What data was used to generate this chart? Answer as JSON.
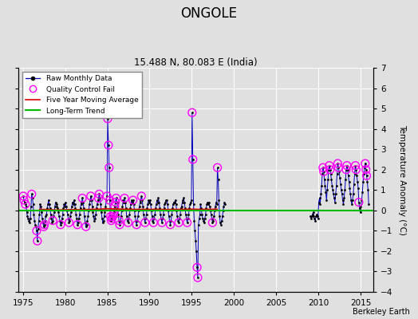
{
  "title": "ONGOLE",
  "subtitle": "15.488 N, 80.083 E (India)",
  "ylabel": "Temperature Anomaly (°C)",
  "xlim": [
    1974.5,
    2016.5
  ],
  "ylim": [
    -4,
    7
  ],
  "yticks": [
    -4,
    -3,
    -2,
    -1,
    0,
    1,
    2,
    3,
    4,
    5,
    6,
    7
  ],
  "xticks": [
    1975,
    1980,
    1985,
    1990,
    1995,
    2000,
    2005,
    2010,
    2015
  ],
  "background_color": "#e0e0e0",
  "grid_color": "#ffffff",
  "watermark": "Berkeley Earth",
  "raw_line_color": "#0000bb",
  "raw_dot_color": "#000000",
  "qc_fail_color": "#ff00ff",
  "moving_avg_color": "#dd0000",
  "trend_color": "#00bb00",
  "trend_y": 0.0,
  "raw_monthly_data": [
    [
      1975.04,
      0.7
    ],
    [
      1975.13,
      0.5
    ],
    [
      1975.21,
      0.4
    ],
    [
      1975.29,
      0.3
    ],
    [
      1975.38,
      0.2
    ],
    [
      1975.46,
      -0.1
    ],
    [
      1975.54,
      -0.3
    ],
    [
      1975.63,
      -0.4
    ],
    [
      1975.71,
      -0.5
    ],
    [
      1975.79,
      -0.6
    ],
    [
      1975.88,
      -0.4
    ],
    [
      1975.96,
      0.2
    ],
    [
      1976.04,
      0.8
    ],
    [
      1976.13,
      0.6
    ],
    [
      1976.21,
      0.3
    ],
    [
      1976.29,
      -0.2
    ],
    [
      1976.38,
      -0.5
    ],
    [
      1976.46,
      -0.7
    ],
    [
      1976.54,
      -0.8
    ],
    [
      1976.63,
      -1.0
    ],
    [
      1976.71,
      -1.5
    ],
    [
      1976.79,
      -0.9
    ],
    [
      1976.88,
      -0.5
    ],
    [
      1976.96,
      -0.2
    ],
    [
      1977.04,
      0.3
    ],
    [
      1977.13,
      0.2
    ],
    [
      1977.21,
      -0.1
    ],
    [
      1977.29,
      -0.4
    ],
    [
      1977.38,
      -0.6
    ],
    [
      1977.46,
      -0.8
    ],
    [
      1977.54,
      -0.7
    ],
    [
      1977.63,
      -0.5
    ],
    [
      1977.71,
      -0.3
    ],
    [
      1977.79,
      -0.2
    ],
    [
      1977.88,
      0.1
    ],
    [
      1977.96,
      0.3
    ],
    [
      1978.04,
      0.5
    ],
    [
      1978.13,
      0.3
    ],
    [
      1978.21,
      0.1
    ],
    [
      1978.29,
      -0.2
    ],
    [
      1978.38,
      -0.4
    ],
    [
      1978.46,
      -0.6
    ],
    [
      1978.54,
      -0.5
    ],
    [
      1978.63,
      -0.3
    ],
    [
      1978.71,
      -0.1
    ],
    [
      1978.79,
      0.2
    ],
    [
      1978.88,
      0.4
    ],
    [
      1978.96,
      0.3
    ],
    [
      1979.04,
      0.2
    ],
    [
      1979.13,
      0.1
    ],
    [
      1979.21,
      -0.1
    ],
    [
      1979.29,
      -0.3
    ],
    [
      1979.38,
      -0.5
    ],
    [
      1979.46,
      -0.7
    ],
    [
      1979.54,
      -0.6
    ],
    [
      1979.63,
      -0.4
    ],
    [
      1979.71,
      -0.2
    ],
    [
      1979.79,
      0.1
    ],
    [
      1979.88,
      0.3
    ],
    [
      1979.96,
      0.2
    ],
    [
      1980.04,
      0.4
    ],
    [
      1980.13,
      0.2
    ],
    [
      1980.21,
      0.0
    ],
    [
      1980.29,
      -0.2
    ],
    [
      1980.38,
      -0.4
    ],
    [
      1980.46,
      -0.6
    ],
    [
      1980.54,
      -0.5
    ],
    [
      1980.63,
      -0.3
    ],
    [
      1980.71,
      -0.1
    ],
    [
      1980.79,
      0.2
    ],
    [
      1980.88,
      0.4
    ],
    [
      1980.96,
      0.3
    ],
    [
      1981.04,
      0.5
    ],
    [
      1981.13,
      0.3
    ],
    [
      1981.21,
      0.1
    ],
    [
      1981.29,
      -0.2
    ],
    [
      1981.38,
      -0.4
    ],
    [
      1981.46,
      -0.7
    ],
    [
      1981.54,
      -0.6
    ],
    [
      1981.63,
      -0.4
    ],
    [
      1981.71,
      -0.2
    ],
    [
      1981.79,
      0.1
    ],
    [
      1981.88,
      0.3
    ],
    [
      1981.96,
      0.4
    ],
    [
      1982.04,
      0.6
    ],
    [
      1982.13,
      0.4
    ],
    [
      1982.21,
      0.1
    ],
    [
      1982.29,
      -0.3
    ],
    [
      1982.38,
      -0.6
    ],
    [
      1982.46,
      -0.8
    ],
    [
      1982.54,
      -0.7
    ],
    [
      1982.63,
      -0.5
    ],
    [
      1982.71,
      -0.3
    ],
    [
      1982.79,
      0.0
    ],
    [
      1982.88,
      0.3
    ],
    [
      1982.96,
      0.5
    ],
    [
      1983.04,
      0.7
    ],
    [
      1983.13,
      0.5
    ],
    [
      1983.21,
      0.2
    ],
    [
      1983.29,
      -0.1
    ],
    [
      1983.38,
      -0.3
    ],
    [
      1983.46,
      -0.5
    ],
    [
      1983.54,
      -0.4
    ],
    [
      1983.63,
      -0.2
    ],
    [
      1983.71,
      0.1
    ],
    [
      1983.79,
      0.3
    ],
    [
      1983.88,
      0.5
    ],
    [
      1983.96,
      0.6
    ],
    [
      1984.04,
      0.8
    ],
    [
      1984.13,
      0.6
    ],
    [
      1984.21,
      0.3
    ],
    [
      1984.29,
      -0.1
    ],
    [
      1984.38,
      -0.4
    ],
    [
      1984.46,
      -0.6
    ],
    [
      1984.54,
      -0.5
    ],
    [
      1984.63,
      -0.3
    ],
    [
      1984.71,
      -0.1
    ],
    [
      1984.79,
      0.2
    ],
    [
      1984.88,
      0.5
    ],
    [
      1984.96,
      0.7
    ],
    [
      1985.04,
      4.5
    ],
    [
      1985.13,
      3.2
    ],
    [
      1985.21,
      2.1
    ],
    [
      1985.29,
      0.5
    ],
    [
      1985.38,
      -0.3
    ],
    [
      1985.46,
      -0.5
    ],
    [
      1985.54,
      -0.4
    ],
    [
      1985.63,
      -0.3
    ],
    [
      1985.71,
      -0.2
    ],
    [
      1985.79,
      -0.1
    ],
    [
      1985.88,
      0.2
    ],
    [
      1985.96,
      0.4
    ],
    [
      1986.04,
      0.6
    ],
    [
      1986.13,
      0.4
    ],
    [
      1986.21,
      0.1
    ],
    [
      1986.29,
      -0.2
    ],
    [
      1986.38,
      -0.5
    ],
    [
      1986.46,
      -0.7
    ],
    [
      1986.54,
      -0.5
    ],
    [
      1986.63,
      -0.3
    ],
    [
      1986.71,
      0.0
    ],
    [
      1986.79,
      0.2
    ],
    [
      1986.88,
      0.5
    ],
    [
      1986.96,
      0.4
    ],
    [
      1987.04,
      0.6
    ],
    [
      1987.13,
      0.4
    ],
    [
      1987.21,
      0.1
    ],
    [
      1987.29,
      -0.3
    ],
    [
      1987.38,
      -0.5
    ],
    [
      1987.46,
      -0.6
    ],
    [
      1987.54,
      -0.4
    ],
    [
      1987.63,
      -0.2
    ],
    [
      1987.71,
      0.1
    ],
    [
      1987.79,
      0.3
    ],
    [
      1987.88,
      0.5
    ],
    [
      1987.96,
      0.4
    ],
    [
      1988.04,
      0.5
    ],
    [
      1988.13,
      0.3
    ],
    [
      1988.21,
      0.0
    ],
    [
      1988.29,
      -0.3
    ],
    [
      1988.38,
      -0.5
    ],
    [
      1988.46,
      -0.7
    ],
    [
      1988.54,
      -0.5
    ],
    [
      1988.63,
      -0.3
    ],
    [
      1988.71,
      0.0
    ],
    [
      1988.79,
      0.2
    ],
    [
      1988.88,
      0.4
    ],
    [
      1988.96,
      0.5
    ],
    [
      1989.04,
      0.7
    ],
    [
      1989.13,
      0.5
    ],
    [
      1989.21,
      0.2
    ],
    [
      1989.29,
      -0.2
    ],
    [
      1989.38,
      -0.4
    ],
    [
      1989.46,
      -0.6
    ],
    [
      1989.54,
      -0.4
    ],
    [
      1989.63,
      -0.2
    ],
    [
      1989.71,
      0.1
    ],
    [
      1989.79,
      0.3
    ],
    [
      1989.88,
      0.5
    ],
    [
      1989.96,
      0.4
    ],
    [
      1990.04,
      0.5
    ],
    [
      1990.13,
      0.3
    ],
    [
      1990.21,
      0.0
    ],
    [
      1990.29,
      -0.3
    ],
    [
      1990.38,
      -0.5
    ],
    [
      1990.46,
      -0.6
    ],
    [
      1990.54,
      -0.4
    ],
    [
      1990.63,
      -0.2
    ],
    [
      1990.71,
      0.1
    ],
    [
      1990.79,
      0.3
    ],
    [
      1990.88,
      0.5
    ],
    [
      1990.96,
      0.4
    ],
    [
      1991.04,
      0.6
    ],
    [
      1991.13,
      0.4
    ],
    [
      1991.21,
      0.1
    ],
    [
      1991.29,
      -0.2
    ],
    [
      1991.38,
      -0.4
    ],
    [
      1991.46,
      -0.6
    ],
    [
      1991.54,
      -0.4
    ],
    [
      1991.63,
      -0.2
    ],
    [
      1991.71,
      0.1
    ],
    [
      1991.79,
      0.3
    ],
    [
      1991.88,
      0.4
    ],
    [
      1991.96,
      0.5
    ],
    [
      1992.04,
      0.5
    ],
    [
      1992.13,
      0.3
    ],
    [
      1992.21,
      0.0
    ],
    [
      1992.29,
      -0.3
    ],
    [
      1992.38,
      -0.5
    ],
    [
      1992.46,
      -0.7
    ],
    [
      1992.54,
      -0.5
    ],
    [
      1992.63,
      -0.2
    ],
    [
      1992.71,
      0.1
    ],
    [
      1992.79,
      0.3
    ],
    [
      1992.88,
      0.4
    ],
    [
      1992.96,
      0.4
    ],
    [
      1993.04,
      0.5
    ],
    [
      1993.13,
      0.3
    ],
    [
      1993.21,
      0.0
    ],
    [
      1993.29,
      -0.3
    ],
    [
      1993.38,
      -0.5
    ],
    [
      1993.46,
      -0.6
    ],
    [
      1993.54,
      -0.4
    ],
    [
      1993.63,
      -0.2
    ],
    [
      1993.71,
      0.1
    ],
    [
      1993.79,
      0.2
    ],
    [
      1993.88,
      0.4
    ],
    [
      1993.96,
      0.5
    ],
    [
      1994.04,
      0.6
    ],
    [
      1994.13,
      0.4
    ],
    [
      1994.21,
      0.1
    ],
    [
      1994.29,
      -0.2
    ],
    [
      1994.38,
      -0.4
    ],
    [
      1994.46,
      -0.6
    ],
    [
      1994.54,
      -0.4
    ],
    [
      1994.63,
      -0.2
    ],
    [
      1994.71,
      0.1
    ],
    [
      1994.79,
      0.3
    ],
    [
      1994.88,
      0.4
    ],
    [
      1994.96,
      0.5
    ],
    [
      1995.04,
      4.8
    ],
    [
      1995.13,
      2.5
    ],
    [
      1995.21,
      0.3
    ],
    [
      1995.29,
      -0.5
    ],
    [
      1995.38,
      -1.0
    ],
    [
      1995.46,
      -1.5
    ],
    [
      1995.54,
      -2.0
    ],
    [
      1995.63,
      -2.8
    ],
    [
      1995.71,
      -3.3
    ],
    [
      1995.79,
      -0.7
    ],
    [
      1995.88,
      -0.4
    ],
    [
      1995.96,
      -0.2
    ],
    [
      1996.04,
      0.3
    ],
    [
      1996.13,
      0.1
    ],
    [
      1996.21,
      -0.2
    ],
    [
      1996.29,
      -0.4
    ],
    [
      1996.38,
      -0.5
    ],
    [
      1996.46,
      -0.6
    ],
    [
      1996.54,
      -0.4
    ],
    [
      1996.63,
      -0.2
    ],
    [
      1996.71,
      0.1
    ],
    [
      1996.79,
      0.3
    ],
    [
      1996.88,
      0.4
    ],
    [
      1996.96,
      0.3
    ],
    [
      1997.04,
      0.4
    ],
    [
      1997.13,
      0.2
    ],
    [
      1997.21,
      0.0
    ],
    [
      1997.29,
      -0.2
    ],
    [
      1997.38,
      -0.4
    ],
    [
      1997.46,
      -0.6
    ],
    [
      1997.54,
      -0.5
    ],
    [
      1997.63,
      -0.3
    ],
    [
      1997.71,
      0.0
    ],
    [
      1997.79,
      0.2
    ],
    [
      1997.88,
      0.4
    ],
    [
      1997.96,
      0.3
    ],
    [
      1998.04,
      2.1
    ],
    [
      1998.13,
      1.5
    ],
    [
      1998.21,
      0.5
    ],
    [
      1998.29,
      -0.3
    ],
    [
      1998.38,
      -0.6
    ],
    [
      1998.46,
      -0.7
    ],
    [
      1998.54,
      -0.5
    ],
    [
      1998.63,
      -0.3
    ],
    [
      1998.71,
      0.0
    ],
    [
      1998.79,
      0.2
    ],
    [
      1998.88,
      0.4
    ],
    [
      1998.96,
      0.3
    ],
    [
      2009.04,
      -0.3
    ],
    [
      2009.13,
      -0.4
    ],
    [
      2009.21,
      -0.3
    ],
    [
      2009.29,
      -0.2
    ],
    [
      2009.38,
      -0.1
    ],
    [
      2009.46,
      -0.3
    ],
    [
      2009.54,
      -0.4
    ],
    [
      2009.63,
      -0.5
    ],
    [
      2009.71,
      -0.3
    ],
    [
      2009.79,
      -0.2
    ],
    [
      2009.88,
      -0.3
    ],
    [
      2009.96,
      -0.4
    ],
    [
      2010.04,
      0.4
    ],
    [
      2010.13,
      0.6
    ],
    [
      2010.21,
      0.3
    ],
    [
      2010.29,
      0.8
    ],
    [
      2010.38,
      1.2
    ],
    [
      2010.46,
      1.8
    ],
    [
      2010.54,
      2.1
    ],
    [
      2010.63,
      1.9
    ],
    [
      2010.71,
      1.5
    ],
    [
      2010.79,
      1.2
    ],
    [
      2010.88,
      0.9
    ],
    [
      2010.96,
      0.5
    ],
    [
      2011.04,
      1.0
    ],
    [
      2011.13,
      1.5
    ],
    [
      2011.21,
      2.0
    ],
    [
      2011.29,
      2.2
    ],
    [
      2011.38,
      2.0
    ],
    [
      2011.46,
      1.8
    ],
    [
      2011.54,
      1.5
    ],
    [
      2011.63,
      1.2
    ],
    [
      2011.71,
      1.0
    ],
    [
      2011.79,
      0.8
    ],
    [
      2011.88,
      0.6
    ],
    [
      2011.96,
      0.4
    ],
    [
      2012.04,
      0.8
    ],
    [
      2012.13,
      1.2
    ],
    [
      2012.21,
      1.8
    ],
    [
      2012.29,
      2.3
    ],
    [
      2012.38,
      2.1
    ],
    [
      2012.46,
      1.9
    ],
    [
      2012.54,
      1.6
    ],
    [
      2012.63,
      1.3
    ],
    [
      2012.71,
      1.0
    ],
    [
      2012.79,
      0.8
    ],
    [
      2012.88,
      0.5
    ],
    [
      2012.96,
      0.3
    ],
    [
      2013.04,
      0.6
    ],
    [
      2013.13,
      1.0
    ],
    [
      2013.21,
      1.5
    ],
    [
      2013.29,
      2.0
    ],
    [
      2013.38,
      2.2
    ],
    [
      2013.46,
      2.0
    ],
    [
      2013.54,
      1.7
    ],
    [
      2013.63,
      1.4
    ],
    [
      2013.71,
      1.1
    ],
    [
      2013.79,
      0.8
    ],
    [
      2013.88,
      0.5
    ],
    [
      2013.96,
      0.3
    ],
    [
      2014.04,
      0.5
    ],
    [
      2014.13,
      0.8
    ],
    [
      2014.21,
      1.3
    ],
    [
      2014.29,
      1.8
    ],
    [
      2014.38,
      2.2
    ],
    [
      2014.46,
      2.0
    ],
    [
      2014.54,
      1.7
    ],
    [
      2014.63,
      1.4
    ],
    [
      2014.71,
      1.1
    ],
    [
      2014.79,
      0.4
    ],
    [
      2014.88,
      0.1
    ],
    [
      2014.96,
      -0.1
    ],
    [
      2015.04,
      0.2
    ],
    [
      2015.13,
      0.5
    ],
    [
      2015.21,
      0.9
    ],
    [
      2015.29,
      1.4
    ],
    [
      2015.38,
      1.8
    ],
    [
      2015.46,
      2.1
    ],
    [
      2015.54,
      2.3
    ],
    [
      2015.63,
      2.0
    ],
    [
      2015.71,
      1.7
    ],
    [
      2015.79,
      1.4
    ],
    [
      2015.88,
      1.0
    ],
    [
      2015.96,
      0.3
    ]
  ],
  "qc_fail_points": [
    [
      1975.04,
      0.7
    ],
    [
      1975.13,
      0.5
    ],
    [
      1975.29,
      0.3
    ],
    [
      1976.04,
      0.8
    ],
    [
      1976.63,
      -1.0
    ],
    [
      1976.71,
      -1.5
    ],
    [
      1977.46,
      -0.8
    ],
    [
      1977.54,
      -0.7
    ],
    [
      1978.54,
      -0.5
    ],
    [
      1979.46,
      -0.7
    ],
    [
      1980.46,
      -0.6
    ],
    [
      1981.46,
      -0.7
    ],
    [
      1982.46,
      -0.8
    ],
    [
      1982.04,
      0.6
    ],
    [
      1983.04,
      0.7
    ],
    [
      1983.96,
      0.6
    ],
    [
      1984.04,
      0.8
    ],
    [
      1984.96,
      0.7
    ],
    [
      1985.04,
      4.5
    ],
    [
      1985.13,
      3.2
    ],
    [
      1985.21,
      2.1
    ],
    [
      1985.29,
      0.5
    ],
    [
      1985.38,
      -0.3
    ],
    [
      1985.46,
      -0.5
    ],
    [
      1985.54,
      -0.4
    ],
    [
      1985.63,
      -0.3
    ],
    [
      1985.71,
      -0.2
    ],
    [
      1985.79,
      -0.1
    ],
    [
      1985.88,
      0.2
    ],
    [
      1985.96,
      0.4
    ],
    [
      1986.04,
      0.6
    ],
    [
      1986.38,
      -0.5
    ],
    [
      1986.46,
      -0.7
    ],
    [
      1987.04,
      0.6
    ],
    [
      1987.46,
      -0.6
    ],
    [
      1988.04,
      0.5
    ],
    [
      1988.46,
      -0.7
    ],
    [
      1989.04,
      0.7
    ],
    [
      1989.46,
      -0.6
    ],
    [
      1990.46,
      -0.6
    ],
    [
      1991.46,
      -0.6
    ],
    [
      1992.46,
      -0.7
    ],
    [
      1993.46,
      -0.6
    ],
    [
      1994.46,
      -0.6
    ],
    [
      1995.04,
      4.8
    ],
    [
      1995.13,
      2.5
    ],
    [
      1995.63,
      -2.8
    ],
    [
      1995.71,
      -3.3
    ],
    [
      1997.46,
      -0.6
    ],
    [
      1998.04,
      2.1
    ],
    [
      2010.54,
      2.1
    ],
    [
      2010.63,
      1.9
    ],
    [
      2011.29,
      2.2
    ],
    [
      2011.38,
      2.0
    ],
    [
      2012.29,
      2.3
    ],
    [
      2012.38,
      2.1
    ],
    [
      2013.29,
      2.0
    ],
    [
      2013.38,
      2.2
    ],
    [
      2014.38,
      2.2
    ],
    [
      2014.46,
      2.0
    ],
    [
      2015.54,
      2.3
    ],
    [
      2015.63,
      2.0
    ],
    [
      2015.71,
      1.7
    ],
    [
      2014.79,
      0.4
    ]
  ],
  "moving_avg_data": [
    [
      1977.0,
      0.05
    ],
    [
      1978.0,
      0.04
    ],
    [
      1979.0,
      0.02
    ],
    [
      1980.0,
      0.03
    ],
    [
      1981.0,
      0.04
    ],
    [
      1982.0,
      0.03
    ],
    [
      1983.0,
      0.05
    ],
    [
      1984.0,
      0.06
    ],
    [
      1985.0,
      0.08
    ],
    [
      1986.0,
      0.07
    ],
    [
      1987.0,
      0.06
    ],
    [
      1988.0,
      0.05
    ],
    [
      1989.0,
      0.05
    ],
    [
      1990.0,
      0.05
    ],
    [
      1991.0,
      0.05
    ],
    [
      1992.0,
      0.04
    ],
    [
      1993.0,
      0.05
    ],
    [
      1994.0,
      0.05
    ],
    [
      1995.0,
      0.06
    ],
    [
      1996.0,
      0.05
    ],
    [
      1997.0,
      0.05
    ],
    [
      1998.0,
      0.06
    ]
  ],
  "trend_x": [
    1974.5,
    2016.5
  ],
  "trend_y_val": 0.0
}
